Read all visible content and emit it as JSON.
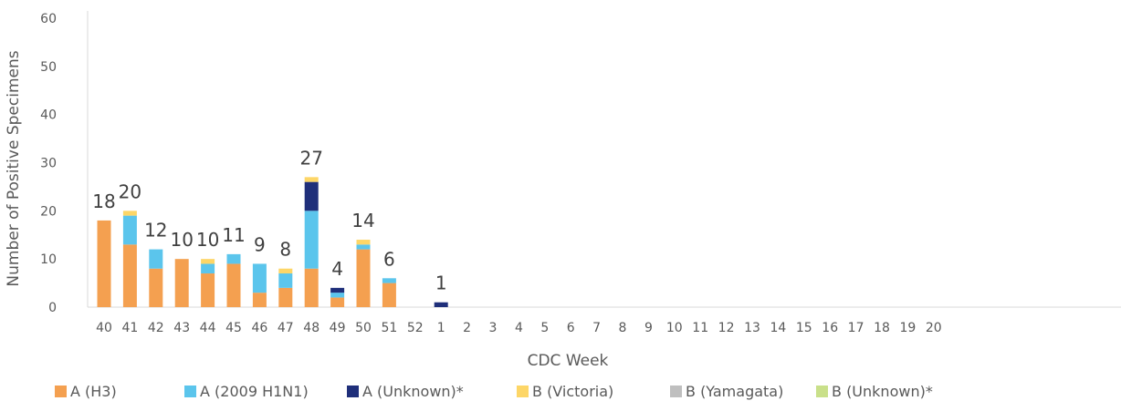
{
  "chart_data": {
    "type": "bar",
    "stacked": true,
    "xlabel": "CDC Week",
    "ylabel": "Number of Positive Specimens",
    "ylim": [
      0,
      60
    ],
    "yticks": [
      0,
      10,
      20,
      30,
      40,
      50,
      60
    ],
    "grid": false,
    "legend_position": "bottom",
    "categories": [
      "40",
      "41",
      "42",
      "43",
      "44",
      "45",
      "46",
      "47",
      "48",
      "49",
      "50",
      "51",
      "52",
      "1",
      "2",
      "3",
      "4",
      "5",
      "6",
      "7",
      "8",
      "9",
      "10",
      "11",
      "12",
      "13",
      "14",
      "15",
      "16",
      "17",
      "18",
      "19",
      "20"
    ],
    "series": [
      {
        "name": "A (H3)",
        "color": "#F4A050",
        "values": [
          18,
          13,
          8,
          10,
          7,
          9,
          3,
          4,
          8,
          2,
          12,
          5,
          0,
          0,
          0,
          0,
          0,
          0,
          0,
          0,
          0,
          0,
          0,
          0,
          0,
          0,
          0,
          0,
          0,
          0,
          0,
          0,
          0
        ]
      },
      {
        "name": "A (2009 H1N1)",
        "color": "#5BC5EC",
        "values": [
          0,
          6,
          4,
          0,
          2,
          2,
          6,
          3,
          12,
          1,
          1,
          1,
          0,
          0,
          0,
          0,
          0,
          0,
          0,
          0,
          0,
          0,
          0,
          0,
          0,
          0,
          0,
          0,
          0,
          0,
          0,
          0,
          0
        ]
      },
      {
        "name": "A (Unknown)*",
        "color": "#1F2F7A",
        "values": [
          0,
          0,
          0,
          0,
          0,
          0,
          0,
          0,
          6,
          1,
          0,
          0,
          0,
          1,
          0,
          0,
          0,
          0,
          0,
          0,
          0,
          0,
          0,
          0,
          0,
          0,
          0,
          0,
          0,
          0,
          0,
          0,
          0
        ]
      },
      {
        "name": "B (Victoria)",
        "color": "#FDD667",
        "values": [
          0,
          1,
          0,
          0,
          1,
          0,
          0,
          1,
          1,
          0,
          1,
          0,
          0,
          0,
          0,
          0,
          0,
          0,
          0,
          0,
          0,
          0,
          0,
          0,
          0,
          0,
          0,
          0,
          0,
          0,
          0,
          0,
          0
        ]
      },
      {
        "name": "B (Yamagata)",
        "color": "#BFBFBF",
        "values": [
          0,
          0,
          0,
          0,
          0,
          0,
          0,
          0,
          0,
          0,
          0,
          0,
          0,
          0,
          0,
          0,
          0,
          0,
          0,
          0,
          0,
          0,
          0,
          0,
          0,
          0,
          0,
          0,
          0,
          0,
          0,
          0,
          0
        ]
      },
      {
        "name": "B (Unknown)*",
        "color": "#C9E08A",
        "values": [
          0,
          0,
          0,
          0,
          0,
          0,
          0,
          0,
          0,
          0,
          0,
          0,
          0,
          0,
          0,
          0,
          0,
          0,
          0,
          0,
          0,
          0,
          0,
          0,
          0,
          0,
          0,
          0,
          0,
          0,
          0,
          0,
          0
        ]
      }
    ],
    "totals": [
      "18",
      "20",
      "12",
      "10",
      "10",
      "11",
      "9",
      "8",
      "27",
      "4",
      "14",
      "6",
      "",
      "1",
      "",
      "",
      "",
      "",
      "",
      "",
      "",
      "",
      "",
      "",
      "",
      "",
      "",
      "",
      "",
      "",
      "",
      "",
      ""
    ]
  }
}
